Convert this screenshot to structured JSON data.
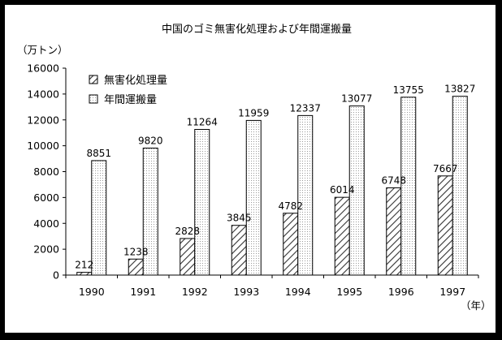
{
  "chart_data": {
    "type": "bar",
    "title": "中国のゴミ無害化処理および年間運搬量",
    "y_unit_label": "（万トン）",
    "x_unit_label": "（年）",
    "categories": [
      "1990",
      "1991",
      "1992",
      "1993",
      "1994",
      "1995",
      "1996",
      "1997"
    ],
    "series": [
      {
        "name": "無害化処理量",
        "values": [
          212,
          1238,
          2828,
          3845,
          4782,
          6014,
          6748,
          7667
        ],
        "pattern": "diagonal-hatch"
      },
      {
        "name": "年間運搬量",
        "values": [
          8851,
          9820,
          11264,
          11959,
          12337,
          13077,
          13755,
          13827
        ],
        "pattern": "dotted"
      }
    ],
    "ylim": [
      0,
      16000
    ],
    "yticks": [
      0,
      2000,
      4000,
      6000,
      8000,
      10000,
      12000,
      14000,
      16000
    ],
    "grid": false,
    "legend_position": "top-left"
  }
}
